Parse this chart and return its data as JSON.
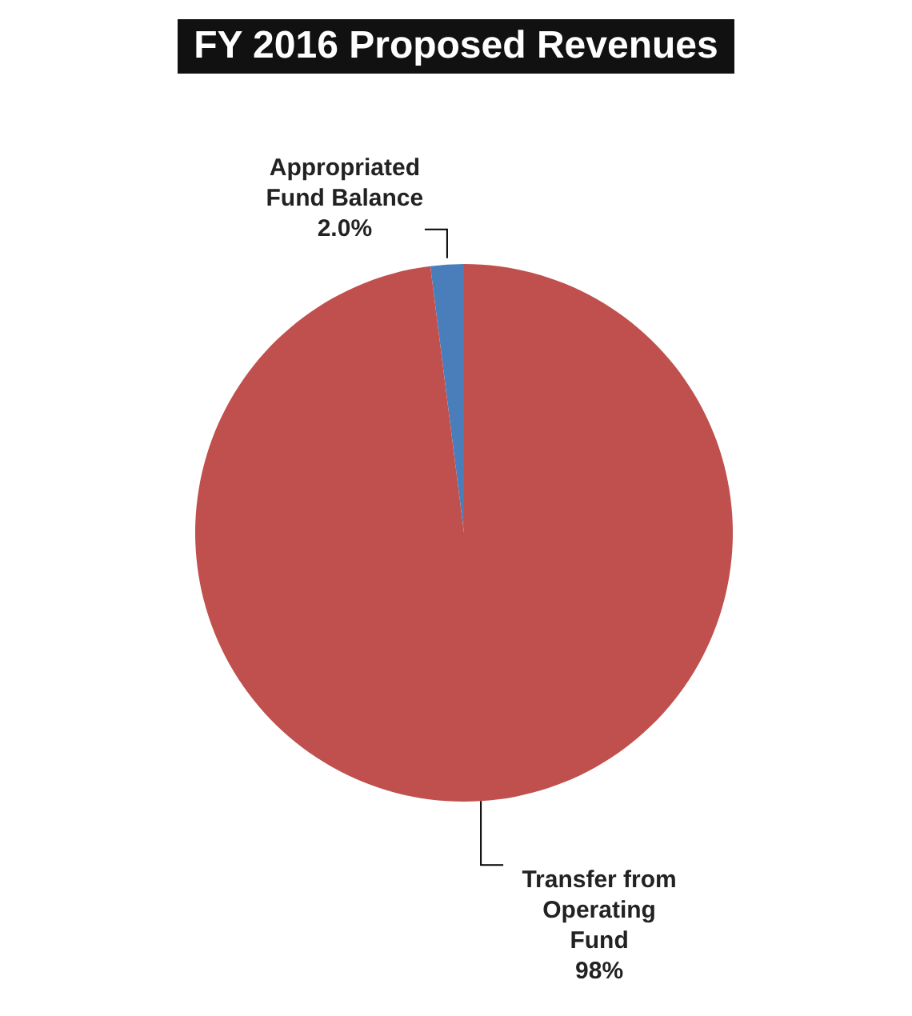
{
  "chart_data": {
    "type": "pie",
    "title": "FY 2016 Proposed Revenues",
    "categories": [
      "Appropriated Fund Balance",
      "Transfer from Operating Fund"
    ],
    "values": [
      2,
      98
    ],
    "value_labels": [
      "2.0%",
      "98%"
    ],
    "colors": [
      "#4a7ebb",
      "#c0504d"
    ]
  }
}
